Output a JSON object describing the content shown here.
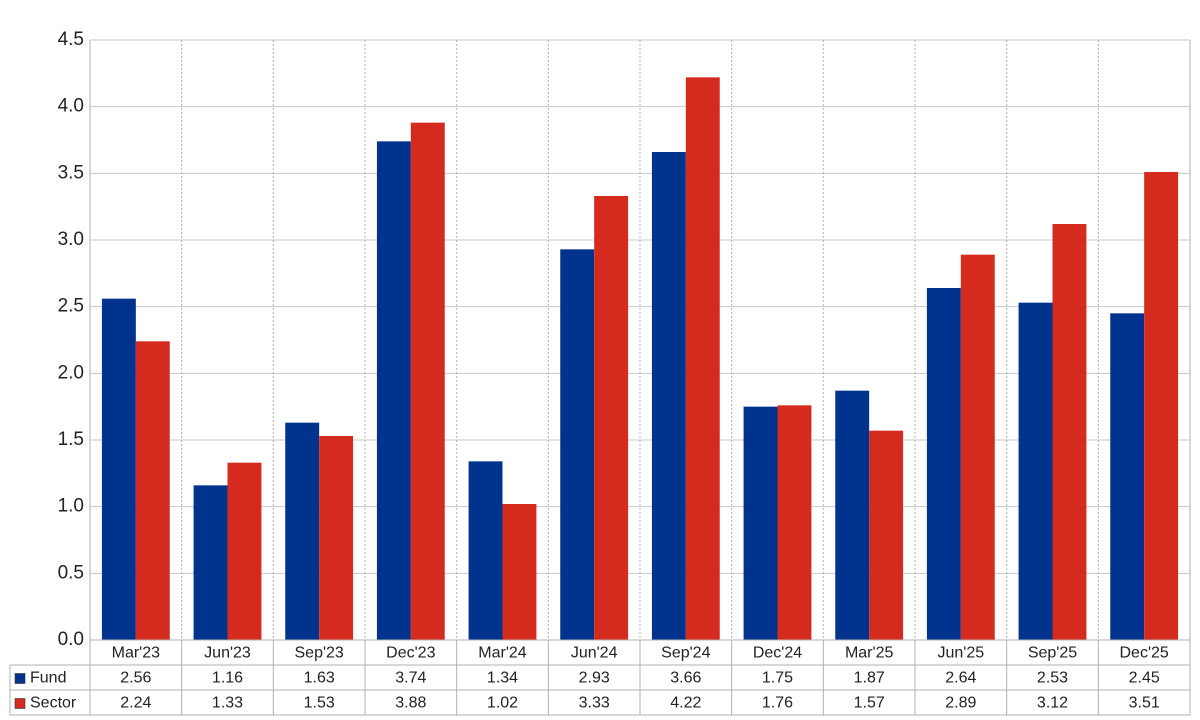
{
  "chart_data": {
    "type": "bar",
    "categories": [
      "Mar'23",
      "Jun'23",
      "Sep'23",
      "Dec'23",
      "Mar'24",
      "Jun'24",
      "Sep'24",
      "Dec'24",
      "Mar'25",
      "Jun'25",
      "Sep'25",
      "Dec'25"
    ],
    "series": [
      {
        "name": "Fund",
        "color": "#00338d",
        "values": [
          2.56,
          1.16,
          1.63,
          3.74,
          1.34,
          2.93,
          3.66,
          1.75,
          1.87,
          2.64,
          2.53,
          2.45
        ]
      },
      {
        "name": "Sector",
        "color": "#d52b1e",
        "values": [
          2.24,
          1.33,
          1.53,
          3.88,
          1.02,
          3.33,
          4.22,
          1.76,
          1.57,
          2.89,
          3.12,
          3.51
        ]
      }
    ],
    "ylim": [
      0,
      4.5
    ],
    "yticks": [
      {
        "value": 0,
        "label": "0.0"
      },
      0.5,
      {
        "value": 1,
        "label": "1.0"
      },
      1.5,
      {
        "value": 2,
        "label": "2.0"
      },
      2.5,
      {
        "value": 3,
        "label": "3.0"
      },
      3.5,
      {
        "value": 4,
        "label": "4.0"
      },
      4.5
    ],
    "grid": true
  }
}
